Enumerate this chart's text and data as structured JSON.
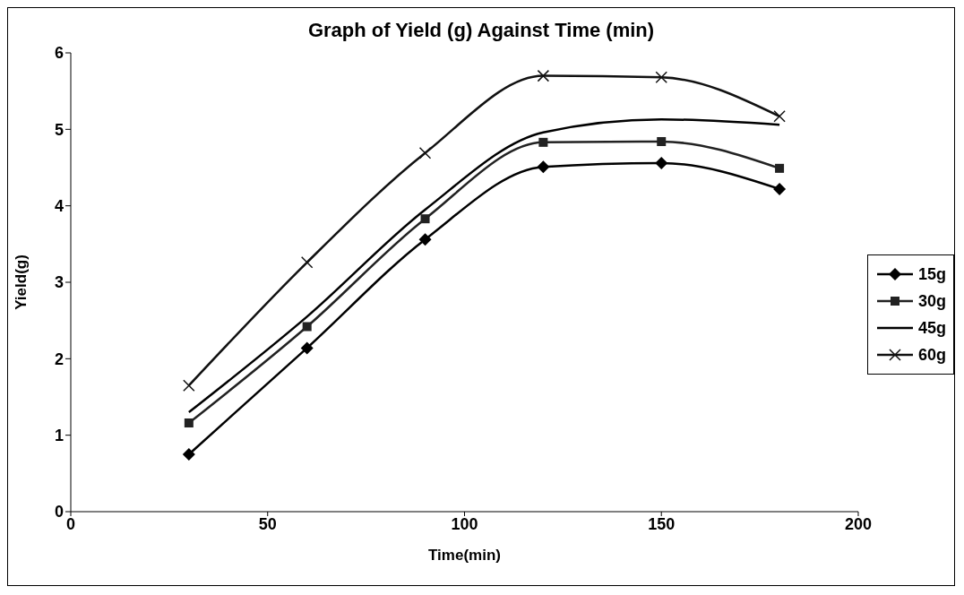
{
  "chart_data": {
    "type": "line",
    "title": "Graph of Yield (g) Against Time (min)",
    "xlabel": "Time(min)",
    "ylabel": "Yield(g)",
    "x": [
      30,
      60,
      90,
      120,
      150,
      180
    ],
    "series": [
      {
        "name": "15g",
        "color": "#000000",
        "marker": "diamond",
        "values": [
          0.75,
          2.14,
          3.56,
          4.51,
          4.56,
          4.22
        ]
      },
      {
        "name": "30g",
        "color": "#222222",
        "marker": "square",
        "values": [
          1.16,
          2.42,
          3.83,
          4.83,
          4.84,
          4.49
        ]
      },
      {
        "name": "45g",
        "color": "#000000",
        "marker": "none",
        "values": [
          1.3,
          2.55,
          3.95,
          4.96,
          5.13,
          5.06
        ]
      },
      {
        "name": "60g",
        "color": "#111111",
        "marker": "cross",
        "values": [
          1.65,
          3.26,
          4.69,
          5.7,
          5.68,
          5.17
        ]
      }
    ],
    "xlim": [
      0,
      200
    ],
    "xticks": [
      0,
      50,
      100,
      150,
      200
    ],
    "ylim": [
      0,
      6
    ],
    "yticks": [
      0,
      1,
      2,
      3,
      4,
      5,
      6
    ],
    "grid": false,
    "legend": "right",
    "line_style": "solid"
  }
}
